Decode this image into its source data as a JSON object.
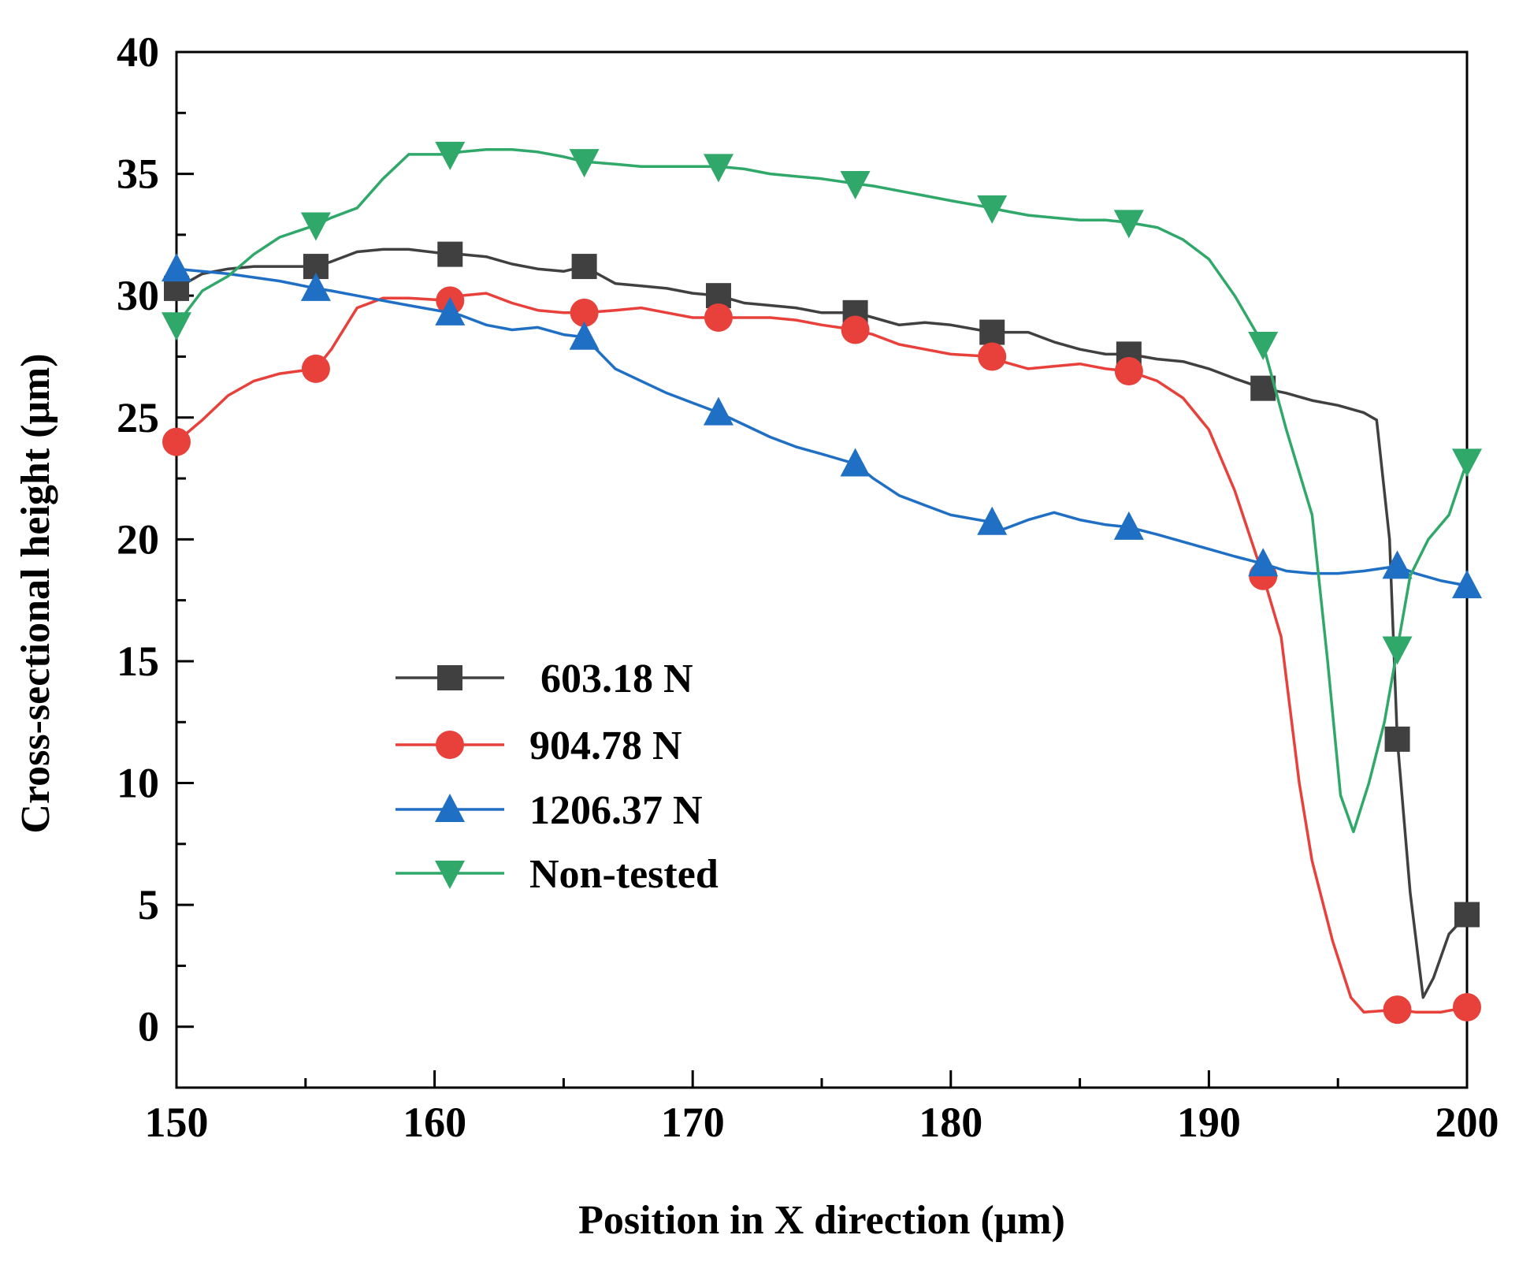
{
  "chart_data": {
    "type": "line",
    "xlabel": "Position in X direction (μm)",
    "ylabel": "Cross-sectional height (μm)",
    "xlim": [
      150,
      200
    ],
    "ylim": [
      -2.5,
      40
    ],
    "x_ticks": [
      150,
      160,
      170,
      180,
      190,
      200
    ],
    "y_ticks": [
      0,
      5,
      10,
      15,
      20,
      25,
      30,
      35,
      40
    ],
    "grid": false,
    "legend_position": "center-left",
    "series": [
      {
        "name": "603.18 N",
        "color": "#404040",
        "marker": "square",
        "x": [
          150,
          151,
          152,
          153,
          154,
          155.4,
          156,
          157,
          158,
          159,
          160.6,
          161,
          162,
          163,
          164,
          165,
          165.8,
          167,
          168,
          169,
          170,
          171,
          172,
          173,
          174,
          175,
          176.3,
          177,
          178,
          179,
          180,
          181.6,
          182,
          183,
          184,
          185,
          186,
          186.9,
          188,
          189,
          190,
          191,
          192.1,
          193,
          194,
          195,
          196,
          196.5,
          197,
          197.3,
          197.8,
          198.3,
          198.7,
          199.3,
          200
        ],
        "y": [
          30.3,
          30.9,
          31.1,
          31.2,
          31.2,
          31.2,
          31.4,
          31.8,
          31.9,
          31.9,
          31.7,
          31.7,
          31.6,
          31.3,
          31.1,
          31.0,
          31.2,
          30.5,
          30.4,
          30.3,
          30.1,
          30.0,
          29.7,
          29.6,
          29.5,
          29.3,
          29.3,
          29.1,
          28.8,
          28.9,
          28.8,
          28.5,
          28.5,
          28.5,
          28.1,
          27.8,
          27.6,
          27.6,
          27.4,
          27.3,
          27.0,
          26.6,
          26.2,
          26.0,
          25.7,
          25.5,
          25.2,
          24.9,
          20.0,
          11.8,
          5.5,
          1.2,
          2.0,
          3.8,
          4.6
        ],
        "marker_x": [
          150,
          155.4,
          160.6,
          165.8,
          171,
          176.3,
          181.6,
          186.9,
          192.1,
          197.3,
          200
        ],
        "marker_y": [
          30.3,
          31.2,
          31.7,
          31.2,
          30.0,
          29.3,
          28.5,
          27.6,
          26.2,
          11.8,
          4.6
        ]
      },
      {
        "name": "904.78 N",
        "color": "#e8403a",
        "marker": "circle",
        "x": [
          150,
          151,
          152,
          153,
          154,
          155.4,
          156,
          157,
          158,
          159,
          160.6,
          161,
          162,
          163,
          164,
          165,
          165.8,
          167,
          168,
          169,
          170,
          171,
          172,
          173,
          174,
          175,
          176.3,
          177,
          178,
          179,
          180,
          181.6,
          182,
          183,
          184,
          185,
          186,
          186.9,
          188,
          189,
          190,
          191,
          192.1,
          192.8,
          193.5,
          194,
          194.8,
          195.5,
          196,
          197.3,
          198,
          199,
          200
        ],
        "y": [
          24.0,
          24.9,
          25.9,
          26.5,
          26.8,
          27.0,
          27.8,
          29.5,
          29.9,
          29.9,
          29.8,
          30.0,
          30.1,
          29.7,
          29.4,
          29.3,
          29.3,
          29.4,
          29.5,
          29.3,
          29.1,
          29.1,
          29.1,
          29.1,
          29.0,
          28.8,
          28.6,
          28.4,
          28.0,
          27.8,
          27.6,
          27.5,
          27.3,
          27.0,
          27.1,
          27.2,
          27.0,
          26.9,
          26.5,
          25.8,
          24.5,
          22.0,
          18.5,
          16.0,
          10.0,
          6.8,
          3.5,
          1.2,
          0.6,
          0.7,
          0.6,
          0.6,
          0.8
        ],
        "marker_x": [
          150,
          155.4,
          160.6,
          165.8,
          171,
          176.3,
          181.6,
          186.9,
          192.1,
          197.3,
          200
        ],
        "marker_y": [
          24.0,
          27.0,
          29.8,
          29.3,
          29.1,
          28.6,
          27.5,
          26.9,
          18.5,
          0.7,
          0.8
        ]
      },
      {
        "name": "1206.37 N",
        "color": "#1f6fc5",
        "marker": "triangle-up",
        "x": [
          150,
          152,
          154,
          155.4,
          156,
          157,
          158,
          159,
          160.6,
          161,
          162,
          163,
          164,
          165,
          165.8,
          167,
          168,
          169,
          170,
          171,
          172,
          173,
          174,
          175,
          176.3,
          177,
          178,
          179,
          180,
          181.6,
          182,
          183,
          184,
          185,
          186,
          186.9,
          188,
          189,
          190,
          191,
          192.1,
          193,
          194,
          195,
          196,
          197.3,
          198,
          199,
          200
        ],
        "y": [
          31.1,
          30.9,
          30.6,
          30.3,
          30.2,
          30.0,
          29.8,
          29.6,
          29.3,
          29.2,
          28.8,
          28.6,
          28.7,
          28.4,
          28.3,
          27.0,
          26.5,
          26.0,
          25.6,
          25.2,
          24.7,
          24.2,
          23.8,
          23.5,
          23.1,
          22.5,
          21.8,
          21.4,
          21.0,
          20.7,
          20.4,
          20.8,
          21.1,
          20.8,
          20.6,
          20.5,
          20.2,
          19.9,
          19.6,
          19.3,
          19.0,
          18.7,
          18.6,
          18.6,
          18.7,
          18.9,
          18.6,
          18.3,
          18.1
        ],
        "marker_x": [
          150,
          155.4,
          160.6,
          165.8,
          171,
          176.3,
          181.6,
          186.9,
          192.1,
          197.3,
          200
        ],
        "marker_y": [
          31.1,
          30.3,
          29.3,
          28.3,
          25.2,
          23.1,
          20.7,
          20.5,
          19.0,
          18.9,
          18.1
        ]
      },
      {
        "name": "Non-tested",
        "color": "#2fa86a",
        "marker": "triangle-down",
        "x": [
          150,
          151,
          152,
          153,
          154,
          155.4,
          156,
          157,
          158,
          159,
          160.6,
          161,
          162,
          163,
          164,
          165,
          165.8,
          167,
          168,
          169,
          170,
          171,
          172,
          173,
          174,
          175,
          176.3,
          177,
          178,
          179,
          180,
          181.6,
          182,
          183,
          184,
          185,
          186,
          186.9,
          188,
          189,
          190,
          191,
          192.1,
          193,
          194,
          194.6,
          195.1,
          195.6,
          196.2,
          196.8,
          197.3,
          197.8,
          198.5,
          199.3,
          200
        ],
        "y": [
          28.8,
          30.2,
          30.8,
          31.7,
          32.4,
          32.9,
          33.2,
          33.6,
          34.8,
          35.8,
          35.8,
          35.9,
          36.0,
          36.0,
          35.9,
          35.7,
          35.5,
          35.4,
          35.3,
          35.3,
          35.3,
          35.3,
          35.2,
          35.0,
          34.9,
          34.8,
          34.6,
          34.5,
          34.3,
          34.1,
          33.9,
          33.6,
          33.5,
          33.3,
          33.2,
          33.1,
          33.1,
          33.0,
          32.8,
          32.3,
          31.5,
          30.0,
          28.0,
          24.5,
          21.0,
          15.0,
          9.5,
          8.0,
          10.0,
          12.5,
          15.5,
          18.5,
          20.0,
          21.0,
          23.2
        ],
        "marker_x": [
          150,
          155.4,
          160.6,
          165.8,
          171,
          176.3,
          181.6,
          186.9,
          192.1,
          197.3,
          200
        ],
        "marker_y": [
          28.8,
          32.9,
          35.8,
          35.5,
          35.3,
          34.6,
          33.6,
          33.0,
          28.0,
          15.5,
          23.2
        ]
      }
    ]
  }
}
